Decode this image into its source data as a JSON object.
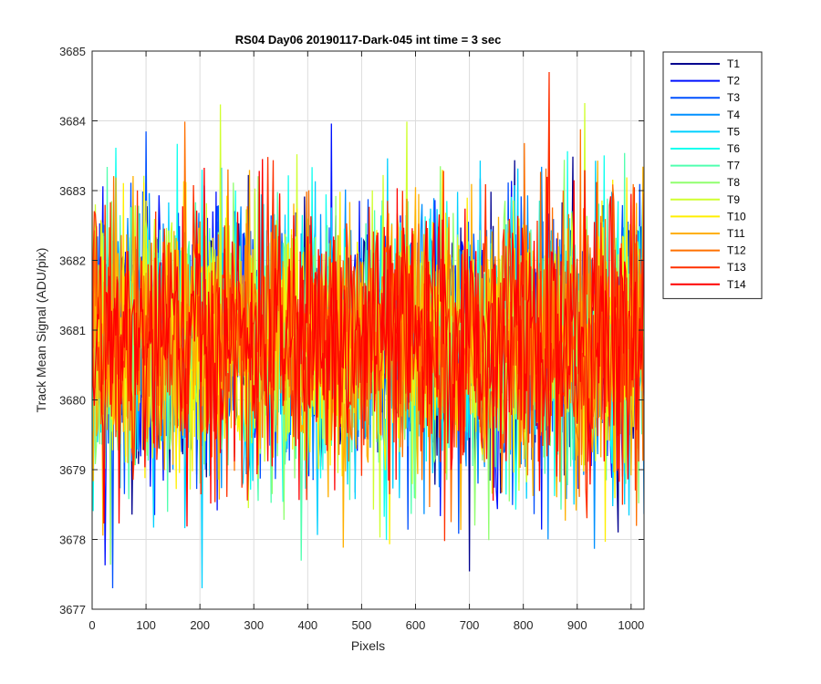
{
  "chart_data": {
    "type": "line",
    "title": "RS04 Day06 20190117-Dark-045 int time = 3 sec",
    "xlabel": "Pixels",
    "ylabel": "Track Mean Signal (ADU/pix)",
    "xlim": [
      0,
      1024
    ],
    "ylim": [
      3677,
      3685
    ],
    "x_ticks": [
      0,
      100,
      200,
      300,
      400,
      500,
      600,
      700,
      800,
      900,
      1000
    ],
    "x_tick_labels": [
      "0",
      "100",
      "200",
      "300",
      "400",
      "500",
      "600",
      "700",
      "800",
      "900",
      "1000"
    ],
    "y_ticks": [
      3677,
      3678,
      3679,
      3680,
      3681,
      3682,
      3683,
      3684,
      3685
    ],
    "y_tick_labels": [
      "3677",
      "3678",
      "3679",
      "3680",
      "3681",
      "3682",
      "3683",
      "3684",
      "3685"
    ],
    "grid": true,
    "legend_position": "outside-top-right",
    "series": [
      {
        "name": "T1",
        "color": "#00008f",
        "mean": 3680.85,
        "std": 0.95
      },
      {
        "name": "T2",
        "color": "#0010ff",
        "mean": 3680.85,
        "std": 0.95
      },
      {
        "name": "T3",
        "color": "#0050ff",
        "mean": 3680.85,
        "std": 0.95
      },
      {
        "name": "T4",
        "color": "#0090ff",
        "mean": 3680.85,
        "std": 0.95
      },
      {
        "name": "T5",
        "color": "#00d0ff",
        "mean": 3680.85,
        "std": 0.95
      },
      {
        "name": "T6",
        "color": "#10ffef",
        "mean": 3680.85,
        "std": 0.95
      },
      {
        "name": "T7",
        "color": "#50ffaf",
        "mean": 3680.85,
        "std": 0.95
      },
      {
        "name": "T8",
        "color": "#90ff6f",
        "mean": 3680.85,
        "std": 0.95
      },
      {
        "name": "T9",
        "color": "#d0ff30",
        "mean": 3680.85,
        "std": 0.95
      },
      {
        "name": "T10",
        "color": "#ffef00",
        "mean": 3680.85,
        "std": 0.95
      },
      {
        "name": "T11",
        "color": "#ffb000",
        "mean": 3680.85,
        "std": 0.95
      },
      {
        "name": "T12",
        "color": "#ff7000",
        "mean": 3680.85,
        "std": 0.95
      },
      {
        "name": "T13",
        "color": "#ff3000",
        "mean": 3680.85,
        "std": 0.95
      },
      {
        "name": "T14",
        "color": "#ff0000",
        "mean": 3680.85,
        "std": 0.95
      }
    ]
  }
}
